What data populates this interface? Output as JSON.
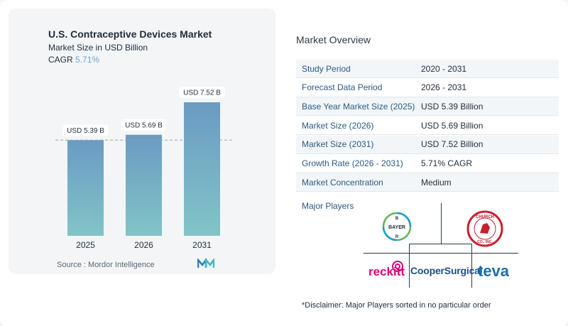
{
  "chart": {
    "title": "U.S. Contraceptive Devices Market",
    "subtitle": "Market Size in USD Billion",
    "cagr_label": "CAGR",
    "cagr_value": "5.71%"
  },
  "chart_data": {
    "type": "bar",
    "categories": [
      "2025",
      "2026",
      "2031"
    ],
    "values": [
      5.39,
      5.69,
      7.52
    ],
    "data_labels": [
      "USD 5.39 B",
      "USD 5.69 B",
      "USD 7.52 B"
    ],
    "title": "U.S. Contraceptive Devices Market",
    "ylabel": "Market Size in USD Billion",
    "ylim": [
      0,
      7.52
    ],
    "grid": false,
    "reference_line": 5.39,
    "colors": {
      "bar_top": "#6a9bc3",
      "bar_bottom": "#82c4c7"
    }
  },
  "source": {
    "label": "Source :",
    "name": "Mordor Intelligence"
  },
  "overview": {
    "title": "Market Overview",
    "rows": [
      {
        "label": "Study Period",
        "value": "2020 - 2031"
      },
      {
        "label": "Forecast Data Period",
        "value": "2026 - 2031"
      },
      {
        "label": "Base Year Market Size (2025)",
        "value": "USD 5.39 Billion"
      },
      {
        "label": "Market Size (2026)",
        "value": "USD 5.69 Billion"
      },
      {
        "label": "Market Size (2031)",
        "value": "USD 7.52 Billion"
      },
      {
        "label": "Growth Rate (2026 - 2031)",
        "value": "5.71% CAGR"
      },
      {
        "label": "Market Concentration",
        "value": "Medium"
      }
    ]
  },
  "players": {
    "title": "Major Players",
    "logos": [
      {
        "name": "bayer-logo",
        "text": "BAYER"
      },
      {
        "name": "church-dwight-logo",
        "text": "CHURCH & DWIGHT CO., INC."
      },
      {
        "name": "reckitt-logo",
        "text": "reckitt"
      },
      {
        "name": "coopersurgical-logo",
        "text": "CooperSurgical"
      },
      {
        "name": "teva-logo",
        "text": "teva"
      }
    ]
  },
  "disclaimer": "*Disclaimer: Major Players sorted in no particular order"
}
